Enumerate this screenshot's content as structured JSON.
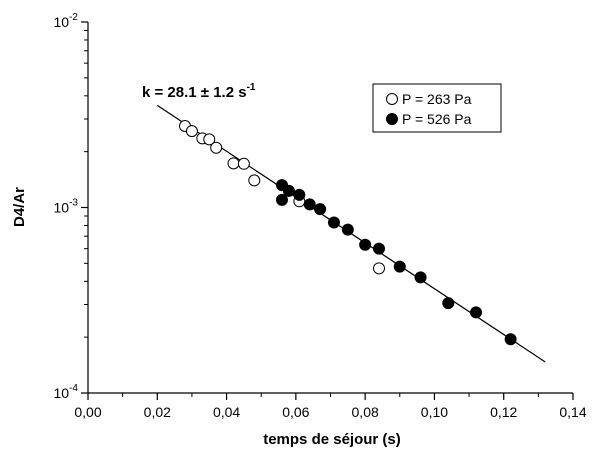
{
  "chart_data": {
    "type": "scatter",
    "title": "",
    "xlabel": "temps de séjour (s)",
    "ylabel": "D4/Ar",
    "xlim": [
      0.0,
      0.14
    ],
    "ylim": [
      0.0001,
      0.01
    ],
    "yscale": "log",
    "x_ticks": [
      0.0,
      0.02,
      0.04,
      0.06,
      0.08,
      0.1,
      0.12,
      0.14
    ],
    "x_tick_labels": [
      "0,00",
      "0,02",
      "0,04",
      "0,06",
      "0,08",
      "0,10",
      "0,12",
      "0,14"
    ],
    "y_ticks": [
      0.0001,
      0.001,
      0.01
    ],
    "y_tick_labels": [
      {
        "base": "10",
        "exp": "-4"
      },
      {
        "base": "10",
        "exp": "-3"
      },
      {
        "base": "10",
        "exp": "-2"
      }
    ],
    "grid": false,
    "legend_position": "top-right",
    "annotation": {
      "main": "k = 28.1 ± 1.2 s",
      "sup": "-1"
    },
    "fit_line": {
      "x": [
        0.02,
        0.132
      ],
      "y": [
        0.00355,
        0.000147
      ]
    },
    "series": [
      {
        "name": "P = 263 Pa",
        "marker": "open-circle",
        "x": [
          0.028,
          0.03,
          0.033,
          0.035,
          0.037,
          0.042,
          0.045,
          0.048,
          0.061,
          0.084
        ],
        "y": [
          0.00275,
          0.00258,
          0.00236,
          0.00233,
          0.0021,
          0.00173,
          0.00172,
          0.0014,
          0.00108,
          0.00047
        ]
      },
      {
        "name": "P = 526 Pa",
        "marker": "filled-circle",
        "x": [
          0.056,
          0.056,
          0.058,
          0.061,
          0.064,
          0.067,
          0.071,
          0.075,
          0.08,
          0.084,
          0.09,
          0.096,
          0.104,
          0.112,
          0.122
        ],
        "y": [
          0.00132,
          0.0011,
          0.00123,
          0.00117,
          0.00104,
          0.00098,
          0.00083,
          0.00076,
          0.00063,
          0.0006,
          0.00048,
          0.00042,
          0.000305,
          0.000272,
          0.000195
        ]
      }
    ]
  }
}
